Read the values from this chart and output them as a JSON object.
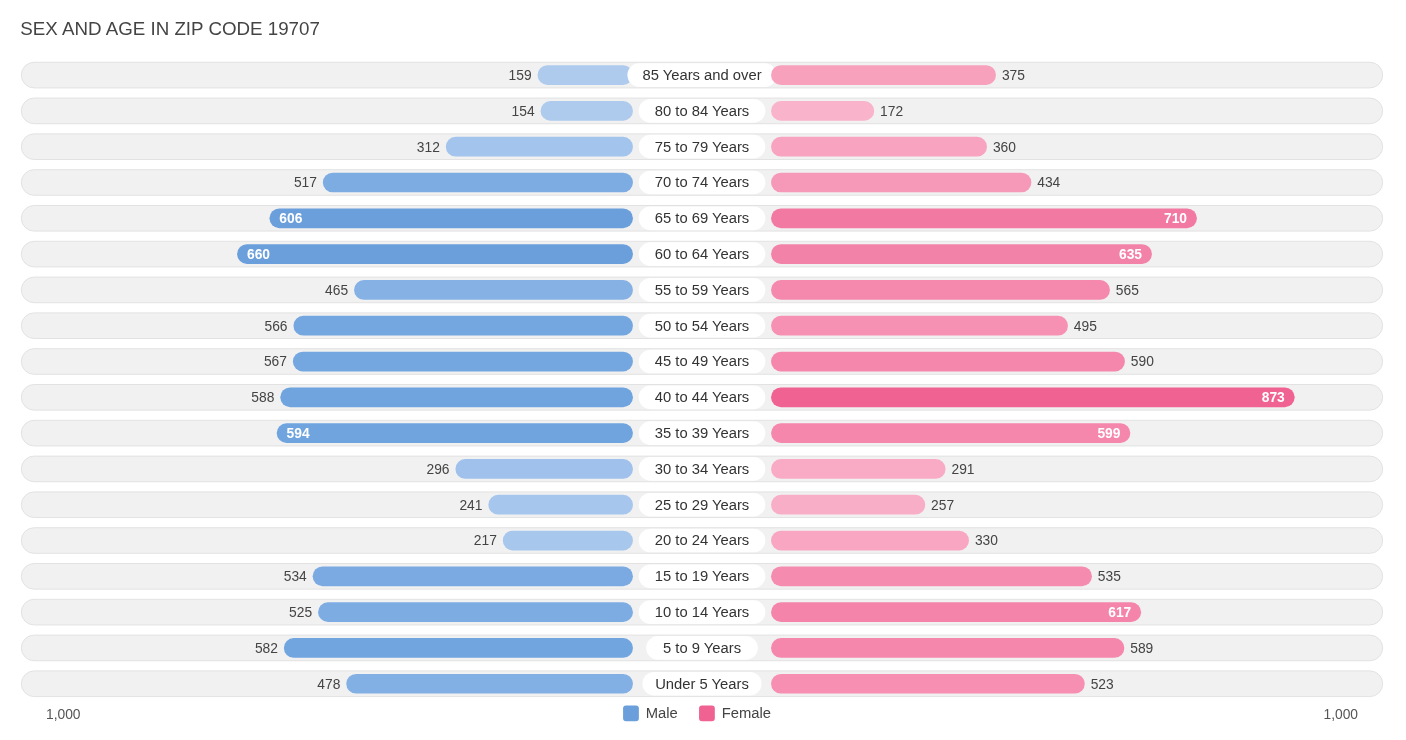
{
  "chart_data": [
    {
      "type": "bar",
      "orientation": "horizontal",
      "title": "SEX AND AGE IN ZIP CODE 19707",
      "categories": [
        "85 Years and over",
        "80 to 84 Years",
        "75 to 79 Years",
        "70 to 74 Years",
        "65 to 69 Years",
        "60 to 64 Years",
        "55 to 59 Years",
        "50 to 54 Years",
        "45 to 49 Years",
        "40 to 44 Years",
        "35 to 39 Years",
        "30 to 34 Years",
        "25 to 29 Years",
        "20 to 24 Years",
        "15 to 19 Years",
        "10 to 14 Years",
        "5 to 9 Years",
        "Under 5 Years"
      ],
      "series": [
        {
          "name": "Male",
          "color": "#6a9fdc",
          "values": [
            159,
            154,
            312,
            517,
            606,
            660,
            465,
            566,
            567,
            588,
            594,
            296,
            241,
            217,
            534,
            525,
            582,
            478
          ],
          "colors": [
            "#aecbee",
            "#aecbee",
            "#a3c4ec",
            "#7dace3",
            "#6a9fdc",
            "#6a9fdc",
            "#85b1e5",
            "#74a7e0",
            "#74a7e0",
            "#6fa4df",
            "#6fa4df",
            "#9fc1eb",
            "#a6c6ed",
            "#a8c7ed",
            "#7baae2",
            "#7dace3",
            "#70a5df",
            "#83b0e4"
          ]
        }
      ],
      "annotations": [
        "1,000"
      ],
      "data_labels": true,
      "legend": "bottom"
    },
    {
      "type": "bar",
      "orientation": "horizontal",
      "categories": [
        null,
        null,
        null,
        null,
        null,
        null,
        null,
        null,
        null,
        null,
        null,
        null,
        null,
        null,
        null,
        null,
        null,
        null
      ],
      "series": [
        {
          "name": "Female",
          "color": "#f06292",
          "values": [
            375,
            172,
            360,
            434,
            710,
            635,
            565,
            495,
            590,
            873,
            599,
            291,
            257,
            330,
            535,
            617,
            589,
            523
          ],
          "colors": [
            "#f7a1bd",
            "#f9b3ca",
            "#f8a3bf",
            "#f698b7",
            "#f27aa2",
            "#f382a8",
            "#f589ad",
            "#f691b3",
            "#f587ac",
            "#f06292",
            "#f586ac",
            "#f9abc5",
            "#f9aec7",
            "#f8a6c1",
            "#f58bae",
            "#f484a9",
            "#f587ac",
            "#f68fb1"
          ]
        }
      ],
      "annotations": [
        "1,000"
      ],
      "data_labels": true,
      "legend": "bottom"
    }
  ]
}
